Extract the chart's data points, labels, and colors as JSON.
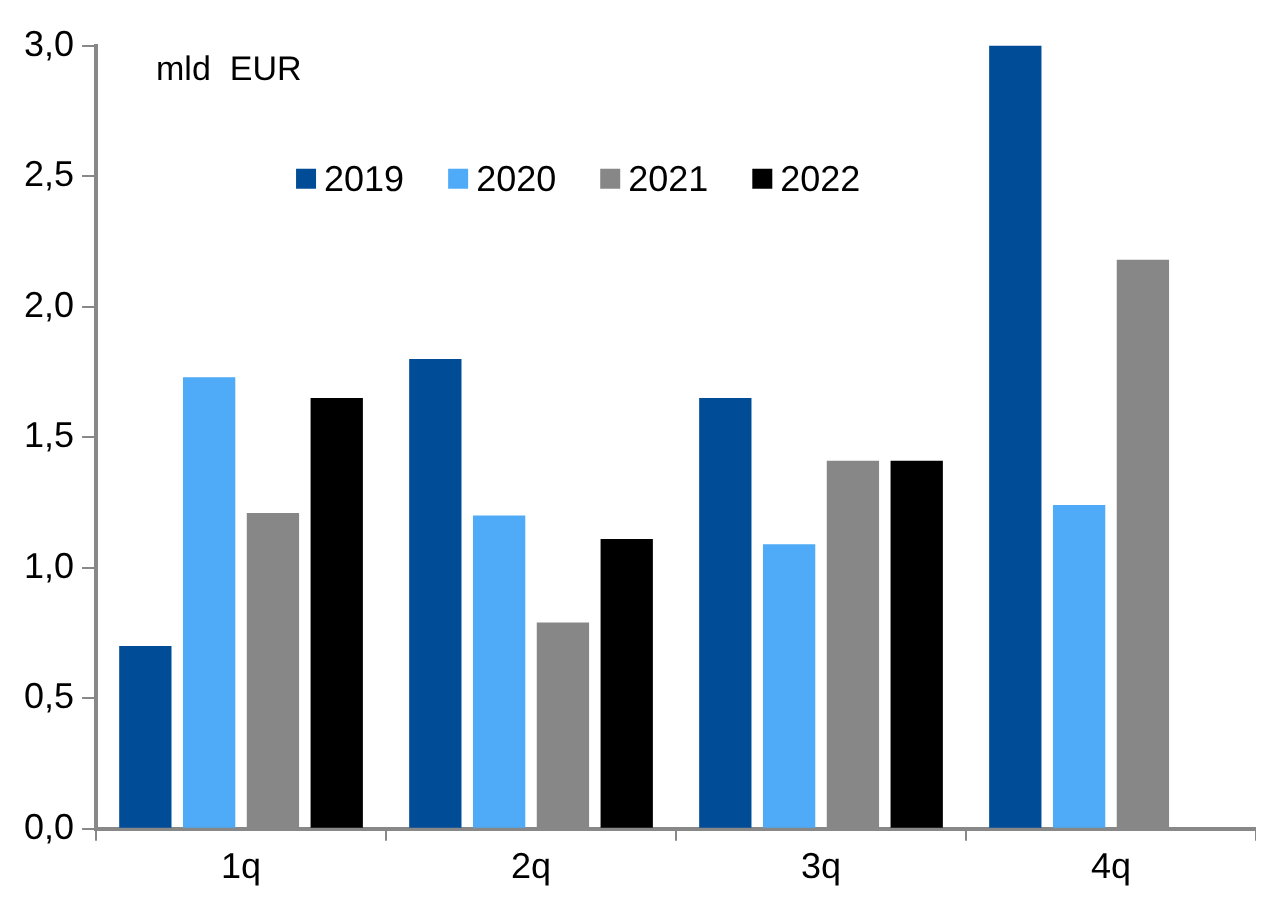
{
  "chart_data": {
    "type": "bar",
    "categories": [
      "1q",
      "2q",
      "3q",
      "4q"
    ],
    "series": [
      {
        "name": "2019",
        "color": "#004c97",
        "values": [
          0.7,
          1.8,
          1.65,
          3.0
        ]
      },
      {
        "name": "2020",
        "color": "#4faaf7",
        "values": [
          1.73,
          1.2,
          1.09,
          1.24
        ]
      },
      {
        "name": "2021",
        "color": "#878787",
        "values": [
          1.21,
          0.79,
          1.41,
          2.18
        ]
      },
      {
        "name": "2022",
        "color": "#000000",
        "values": [
          1.65,
          1.11,
          1.41,
          null
        ]
      }
    ],
    "ylim": [
      0,
      3
    ],
    "yticks": [
      {
        "value": 0,
        "label": "0,0"
      },
      {
        "value": 0.5,
        "label": "0,5"
      },
      {
        "value": 1,
        "label": "1,0"
      },
      {
        "value": 1.5,
        "label": "1,5"
      },
      {
        "value": 2,
        "label": "2,0"
      },
      {
        "value": 2.5,
        "label": "2,5"
      },
      {
        "value": 3,
        "label": "3,0"
      }
    ],
    "annotations": [
      "mld  EUR"
    ],
    "legend": "top",
    "grid": false
  }
}
